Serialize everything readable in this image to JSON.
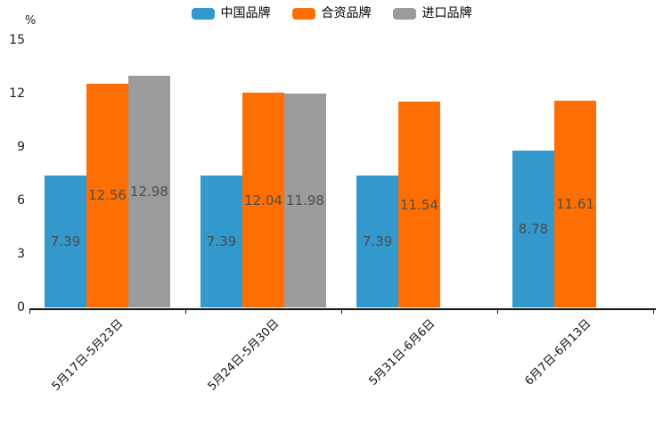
{
  "chart_data": {
    "type": "bar",
    "title": "",
    "ylabel": "%",
    "xlabel": "",
    "ylim": [
      0,
      15
    ],
    "yticks": [
      0,
      3,
      6,
      9,
      12,
      15
    ],
    "grid": false,
    "legend_position": "top",
    "value_labels": true,
    "categories": [
      "5月17日-5月23日",
      "5月24日-5月30日",
      "5月31日-6月6日",
      "6月7日-6月13日"
    ],
    "series": [
      {
        "name": "中国品牌",
        "color": "#3398CC",
        "values": [
          7.39,
          7.39,
          7.39,
          8.78
        ]
      },
      {
        "name": "合资品牌",
        "color": "#FF6E00",
        "values": [
          12.56,
          12.04,
          11.54,
          11.61
        ]
      },
      {
        "name": "进口品牌",
        "color": "#9B9B9B",
        "values": [
          12.98,
          11.98,
          null,
          null
        ]
      }
    ],
    "value_label_color": "#4D4D4D",
    "axis_color": "#111111"
  }
}
